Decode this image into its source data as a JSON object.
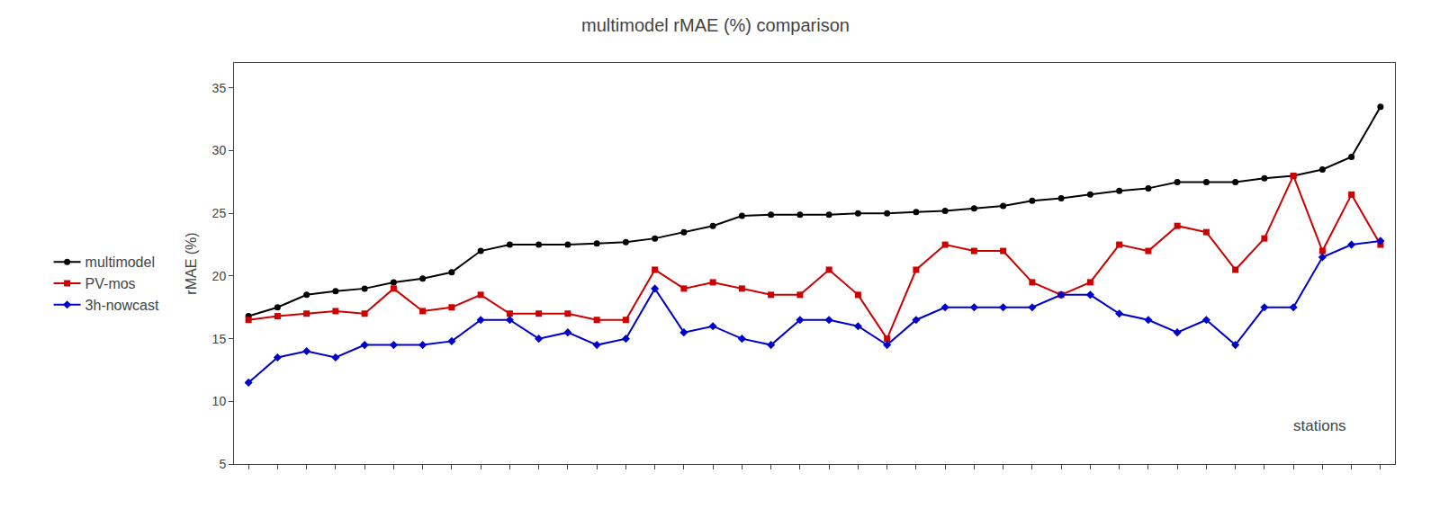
{
  "chart_data": {
    "type": "line",
    "title": "multimodel rMAE (%) comparison",
    "ylabel": "rMAE (%)",
    "annotation": "stations",
    "x": [
      1,
      2,
      3,
      4,
      5,
      6,
      7,
      8,
      9,
      10,
      11,
      12,
      13,
      14,
      15,
      16,
      17,
      18,
      19,
      20,
      21,
      22,
      23,
      24,
      25,
      26,
      27,
      28,
      29,
      30,
      31,
      32,
      33,
      34,
      35,
      36,
      37,
      38,
      39,
      40
    ],
    "xlim": [
      0.5,
      40.5
    ],
    "xticks": [
      1,
      2,
      3,
      4,
      5,
      6,
      7,
      8,
      9,
      10,
      11,
      12,
      13,
      14,
      15,
      16,
      17,
      18,
      19,
      20,
      21,
      22,
      23,
      24,
      25,
      26,
      27,
      28,
      29,
      30,
      31,
      32,
      33,
      34,
      35,
      36,
      37,
      38,
      39,
      40
    ],
    "ylim": [
      5,
      37
    ],
    "yticks": [
      5,
      10,
      15,
      20,
      25,
      30,
      35
    ],
    "tick_labels": "y",
    "grid": false,
    "legend": "left",
    "series": [
      {
        "name": "multimodel",
        "color": "#000000",
        "marker": "circle",
        "values": [
          16.8,
          17.5,
          18.5,
          18.8,
          19.0,
          19.5,
          19.8,
          20.3,
          22.0,
          22.5,
          22.5,
          22.5,
          22.6,
          22.7,
          23.0,
          23.5,
          24.0,
          24.8,
          24.9,
          24.9,
          24.9,
          25.0,
          25.0,
          25.1,
          25.2,
          25.4,
          25.6,
          26.0,
          26.2,
          26.5,
          26.8,
          27.0,
          27.5,
          27.5,
          27.5,
          27.8,
          28.0,
          28.5,
          29.5,
          33.5
        ]
      },
      {
        "name": "PV-mos",
        "color": "#cc0000",
        "marker": "square",
        "values": [
          16.5,
          16.8,
          17.0,
          17.2,
          17.0,
          19.0,
          17.2,
          17.5,
          18.5,
          17.0,
          17.0,
          17.0,
          16.5,
          16.5,
          20.5,
          19.0,
          19.5,
          19.0,
          18.5,
          18.5,
          20.5,
          18.5,
          15.0,
          20.5,
          22.5,
          22.0,
          22.0,
          19.5,
          18.5,
          19.5,
          22.5,
          22.0,
          24.0,
          23.5,
          20.5,
          23.0,
          28.0,
          22.0,
          26.5,
          22.5
        ]
      },
      {
        "name": "3h-nowcast",
        "color": "#0000cc",
        "marker": "diamond",
        "values": [
          11.5,
          13.5,
          14.0,
          13.5,
          14.5,
          14.5,
          14.5,
          14.8,
          16.5,
          16.5,
          15.0,
          15.5,
          14.5,
          15.0,
          19.0,
          15.5,
          16.0,
          15.0,
          14.5,
          16.5,
          16.5,
          16.0,
          14.5,
          16.5,
          17.5,
          17.5,
          17.5,
          17.5,
          18.5,
          18.5,
          17.0,
          16.5,
          15.5,
          16.5,
          14.5,
          17.5,
          17.5,
          21.5,
          22.5,
          22.8
        ]
      }
    ]
  }
}
